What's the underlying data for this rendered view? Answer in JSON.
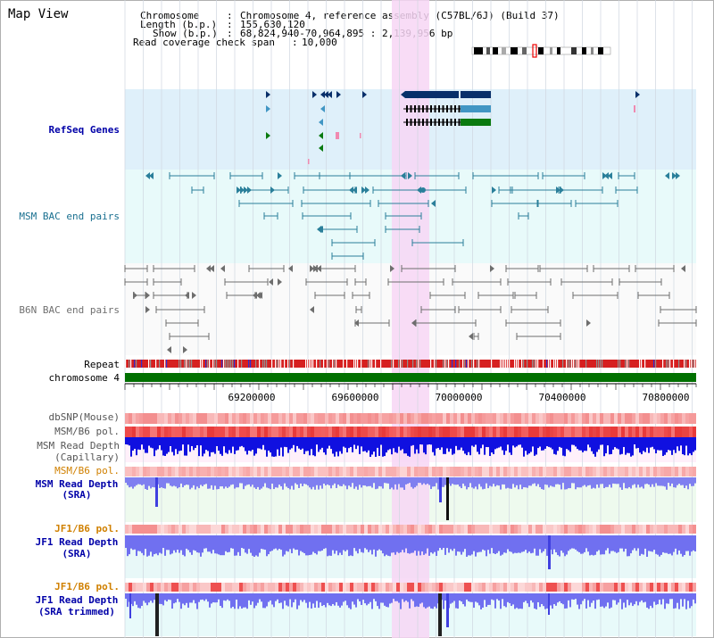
{
  "title": "Map View",
  "info": {
    "chromosome_label": "Chromosome",
    "chromosome_value": "Chromosome 4, reference assembly (C57BL/6J) (Build 37)",
    "length_label": "Length (b.p.)",
    "length_value": "155,630,120",
    "show_label": "Show (b.p.)",
    "show_value": "68,824,940-70,964,895 : 2,139,956 bp",
    "span_label": "Read coverage check span",
    "span_value": "10,000"
  },
  "tracks": {
    "refseq": "RefSeq Genes",
    "msm_bac": "MSM BAC end pairs",
    "b6n_bac": "B6N BAC end pairs",
    "repeat": "Repeat",
    "chromosome": "chromosome 4",
    "dbsnp": "dbSNP(Mouse)",
    "msm_b6_pol_1": "MSM/B6 pol.",
    "msm_read_cap_1": "MSM Read Depth",
    "msm_read_cap_2": "(Capillary)",
    "msm_b6_pol_2": "MSM/B6 pol.",
    "msm_read_sra_1": "MSM Read Depth",
    "msm_read_sra_2": "(SRA)",
    "jf1_b6_pol_1": "JF1/B6 pol.",
    "jf1_read_sra_1": "JF1 Read Depth",
    "jf1_read_sra_2": "(SRA)",
    "jf1_b6_pol_2": "JF1/B6 pol.",
    "jf1_read_trim_1": "JF1 Read Depth",
    "jf1_read_trim_2": "(SRA trimmed)"
  },
  "axis_ticks": [
    "69200000",
    "69600000",
    "70000000",
    "70400000",
    "70800000"
  ],
  "colors": {
    "refseq_bg": "#dff0fa",
    "msm_bg": "#e8fafa",
    "highlight": "#f7d6f5",
    "gene_dark": "#082f6a",
    "gene_mid": "#4196c4",
    "gene_green": "#0a7a10",
    "bac_msm": "#2a7f9a",
    "bac_b6n": "#6e6e6e",
    "chromosome": "#007000",
    "label_blue": "#0000a8",
    "label_teal": "#1a7090",
    "label_orange": "#d08000"
  }
}
